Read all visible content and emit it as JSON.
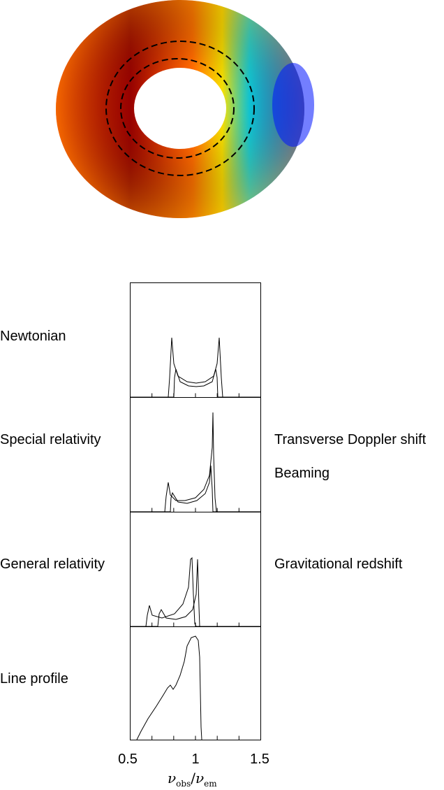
{
  "disk": {
    "colors": {
      "red": "#7f0000",
      "orange": "#ff8000",
      "yellow": "#ffff00",
      "cyan": "#00ffff",
      "blue": "#0000ff",
      "dashed": "#000000"
    }
  },
  "panels": [
    {
      "left_label": "Newtonian",
      "right_labels": []
    },
    {
      "left_label": "Special relativity",
      "right_labels": [
        "Transverse Doppler shift",
        "Beaming"
      ]
    },
    {
      "left_label": "General relativity",
      "right_labels": [
        "Gravitational redshift"
      ]
    },
    {
      "left_label": "Line profile",
      "right_labels": []
    }
  ],
  "axis": {
    "ticks": [
      "0.5",
      "1",
      "1.5"
    ],
    "xlabel": {
      "nu1": "ν",
      "sub1": "obs",
      "slash": "/",
      "nu2": "ν",
      "sub2": "em"
    }
  }
}
